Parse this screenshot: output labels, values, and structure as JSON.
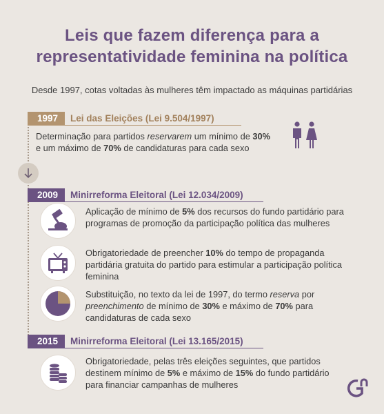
{
  "title_line1": "Leis que fazem diferença para a",
  "title_line2": "representatividade feminina na política",
  "subtitle": "Desde 1997, cotas voltadas às mulheres têm impactado as máquinas partidárias",
  "sections": [
    {
      "year": "1997",
      "title": "Lei das Eleições (Lei 9.504/1997)",
      "items": [
        {
          "icon": "male-female-icon",
          "segments": [
            {
              "t": "Determinação para partidos ",
              "s": ""
            },
            {
              "t": "reservarem",
              "s": "i"
            },
            {
              "t": " um mínimo de ",
              "s": ""
            },
            {
              "t": "30%",
              "s": "b"
            },
            {
              "t": " e um máximo de ",
              "s": ""
            },
            {
              "t": "70%",
              "s": "b"
            },
            {
              "t": " de candidaturas para cada sexo",
              "s": ""
            }
          ]
        }
      ]
    },
    {
      "year": "2009",
      "title": "Minirreforma Eleitoral (Lei 12.034/2009)",
      "items": [
        {
          "icon": "gavel-icon",
          "segments": [
            {
              "t": "Aplicação de mínimo de ",
              "s": ""
            },
            {
              "t": "5%",
              "s": "b"
            },
            {
              "t": " dos recursos do fundo partidário para programas de promoção da participação política das mulheres",
              "s": ""
            }
          ]
        },
        {
          "icon": "tv-icon",
          "segments": [
            {
              "t": "Obrigatoriedade de preencher ",
              "s": ""
            },
            {
              "t": "10%",
              "s": "b"
            },
            {
              "t": " do tempo de propaganda partidária gratuita do partido para estimular a participação política feminina",
              "s": ""
            }
          ]
        },
        {
          "icon": "pie-chart-icon",
          "segments": [
            {
              "t": "Substituição, no texto da lei de 1997, do termo ",
              "s": ""
            },
            {
              "t": "reserva",
              "s": "i"
            },
            {
              "t": " por ",
              "s": ""
            },
            {
              "t": "preenchimento",
              "s": "i"
            },
            {
              "t": " de mínimo de ",
              "s": ""
            },
            {
              "t": "30%",
              "s": "b"
            },
            {
              "t": " e  máximo de ",
              "s": ""
            },
            {
              "t": "70%",
              "s": "b"
            },
            {
              "t": " para candidaturas de cada sexo",
              "s": ""
            }
          ]
        }
      ]
    },
    {
      "year": "2015",
      "title": "Minirreforma Eleitoral (Lei 13.165/2015)",
      "items": [
        {
          "icon": "coins-icon",
          "segments": [
            {
              "t": "Obrigatoriedade, pelas três eleições seguintes, que partidos destinem mínimo de ",
              "s": ""
            },
            {
              "t": "5%",
              "s": "b"
            },
            {
              "t": " e máximo de ",
              "s": ""
            },
            {
              "t": "15%",
              "s": "b"
            },
            {
              "t": " do fundo partidário para financiar campanhas de mulheres",
              "s": ""
            }
          ]
        }
      ]
    }
  ],
  "colors": {
    "purple": "#6b5382",
    "tan": "#b3946f",
    "background": "#ebe7e2",
    "icon": "#6b5382"
  }
}
